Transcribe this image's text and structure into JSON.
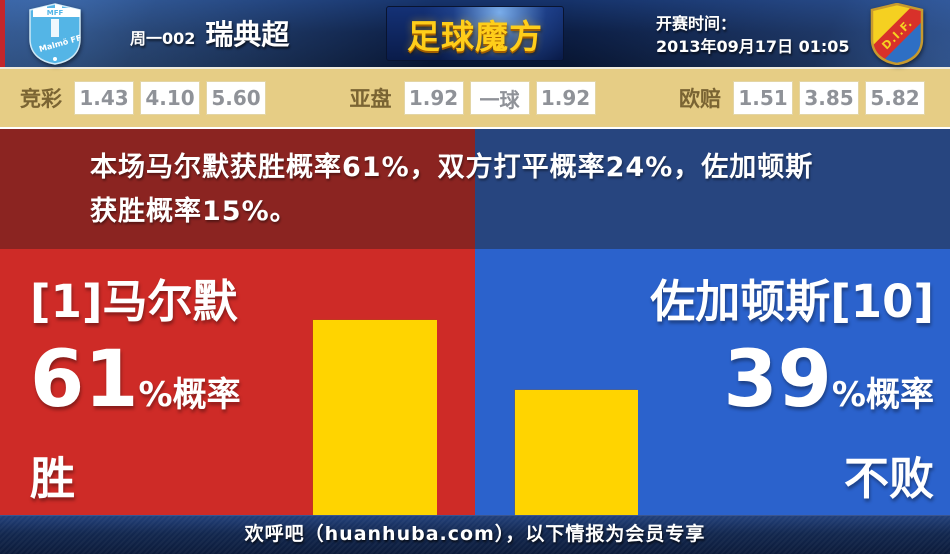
{
  "header": {
    "match_label": "周一002",
    "league": "瑞典超",
    "site_logo": "足球魔方",
    "kickoff_label": "开赛时间：",
    "kickoff_time": "2013年09月17日 01:05",
    "home_crest_text": "Malmö FF",
    "home_crest_initials": "MFF",
    "away_crest_text": "D.I.F."
  },
  "odds": {
    "groups": [
      {
        "label": "竞彩",
        "values": [
          "1.43",
          "4.10",
          "5.60"
        ]
      },
      {
        "label": "亚盘",
        "values": [
          "1.92",
          "一球",
          "1.92"
        ]
      },
      {
        "label": "欧赔",
        "values": [
          "1.51",
          "3.85",
          "5.82"
        ]
      }
    ]
  },
  "summary": {
    "line1": "本场马尔默获胜概率61%，双方打平概率24%，佐加顿斯",
    "line2": "获胜概率15%。"
  },
  "home": {
    "name": "[1]马尔默",
    "pct": "61",
    "pct_suffix": "%概率",
    "outcome": "胜"
  },
  "away": {
    "name": "佐加顿斯[10]",
    "pct": "39",
    "pct_suffix": "%概率",
    "outcome": "不败"
  },
  "footer": {
    "text": "欢呼吧（huanhuba.com），以下情报为会员专享"
  },
  "colors": {
    "home_red": "#CE2B27",
    "away_blue": "#2B62CC",
    "summary_red": "#8B2421",
    "summary_blue": "#27457F",
    "bar_yellow": "#FFD400",
    "odds_band_tan": "#E6CD85",
    "header_navy": "#0C1E44",
    "brand_yellow": "#FFCE1A"
  },
  "chart_data": {
    "type": "bar",
    "categories": [
      "[1]马尔默 胜",
      "佐加顿斯[10] 不败"
    ],
    "values": [
      61,
      39
    ],
    "unit": "%",
    "probabilities": {
      "home_win": 61,
      "draw": 24,
      "away_win": 15,
      "away_unbeaten": 39
    },
    "bar_color": "#FFD400",
    "ylim": [
      0,
      83
    ]
  }
}
